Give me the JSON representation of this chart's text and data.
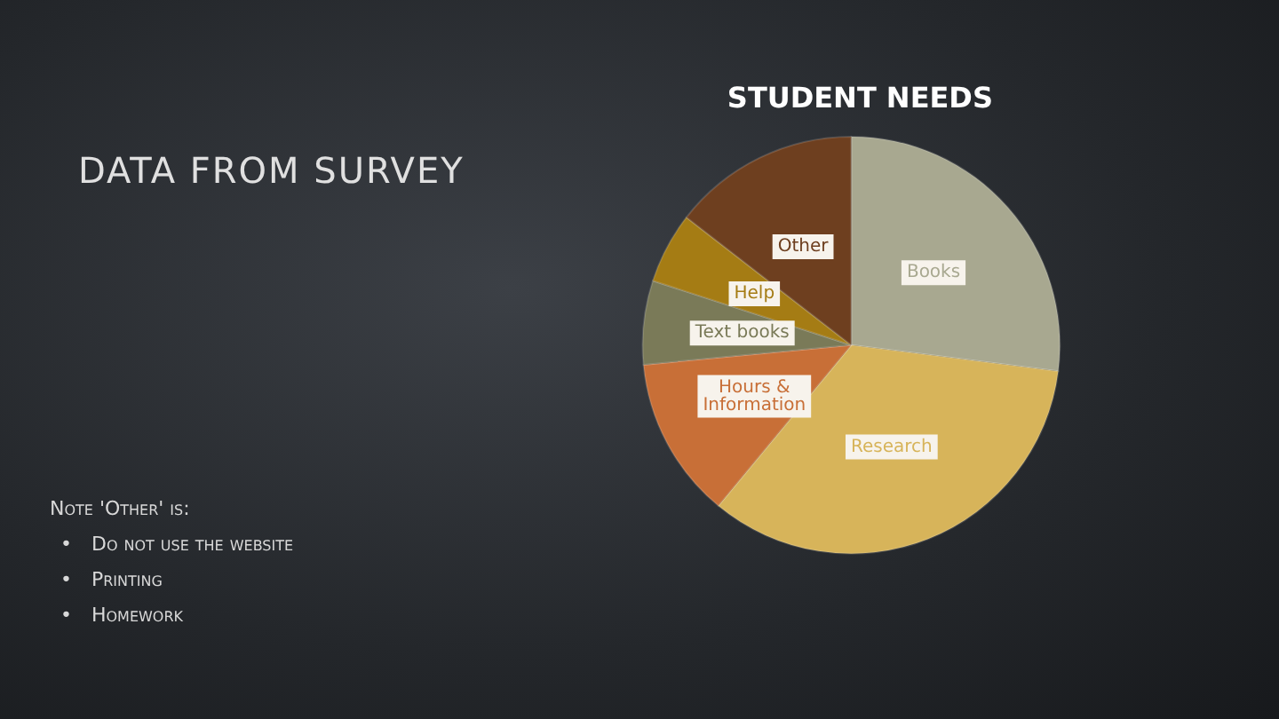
{
  "chart_data": {
    "type": "pie",
    "title": "STUDENT NEEDS",
    "categories": [
      "Books",
      "Research",
      "Hours & Information",
      "Text books",
      "Help",
      "Other"
    ],
    "values": [
      27,
      34,
      12.5,
      6.5,
      5.5,
      14.5
    ],
    "colors": [
      "#a8a890",
      "#d7b45a",
      "#c86f37",
      "#7a7a58",
      "#a57c14",
      "#6e3f1f"
    ],
    "legend": false,
    "annotations": [
      "DATA FROM SURVEY",
      "Note 'Other' is:",
      "• Do not use the website",
      "• Printing",
      "• Homework"
    ]
  }
}
